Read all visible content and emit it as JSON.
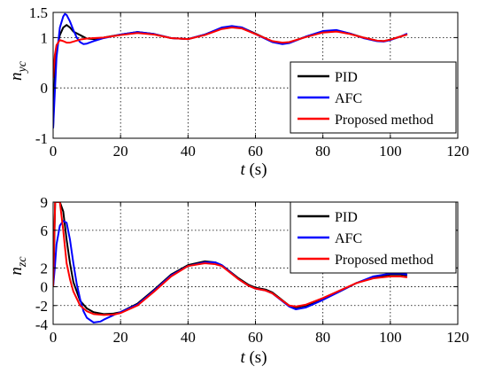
{
  "chart_data": [
    {
      "type": "line",
      "xlim": [
        0,
        120
      ],
      "ylim": [
        -1,
        1.5
      ],
      "xticks": [
        "0",
        "20",
        "40",
        "60",
        "80",
        "100",
        "120"
      ],
      "yticks": [
        "-1",
        "0",
        "1",
        "1.5"
      ],
      "ytick_values": [
        -1,
        0,
        1,
        1.5
      ],
      "xlabel_var": "t",
      "xlabel_unit": " (s)",
      "ylabel_main": "n",
      "ylabel_sub": "yc",
      "grid": true,
      "legend_position": "bottom-right",
      "series": [
        {
          "name": "PID",
          "color": "#000000",
          "x": [
            0,
            0.5,
            1,
            2,
            3,
            4,
            5,
            6,
            8,
            10,
            12,
            15,
            20,
            25,
            30,
            35,
            40,
            45,
            50,
            53,
            56,
            60,
            65,
            68,
            70,
            75,
            80,
            84,
            88,
            92,
            96,
            98,
            100,
            103,
            105
          ],
          "y": [
            -0.8,
            0.3,
            0.75,
            1.05,
            1.2,
            1.25,
            1.2,
            1.12,
            1.05,
            0.98,
            0.97,
            1.0,
            1.06,
            1.11,
            1.07,
            0.99,
            0.97,
            1.06,
            1.19,
            1.22,
            1.2,
            1.08,
            0.92,
            0.88,
            0.9,
            1.02,
            1.12,
            1.14,
            1.08,
            1.0,
            0.94,
            0.93,
            0.96,
            1.02,
            1.07
          ]
        },
        {
          "name": "AFC",
          "color": "#0000ff",
          "x": [
            0,
            0.5,
            1,
            2,
            3,
            3.5,
            4,
            5,
            6,
            7,
            8,
            9,
            10,
            12,
            15,
            20,
            25,
            30,
            35,
            40,
            45,
            50,
            53,
            56,
            60,
            65,
            68,
            70,
            75,
            80,
            84,
            88,
            92,
            96,
            98,
            100,
            103,
            105
          ],
          "y": [
            -0.8,
            -0.1,
            0.6,
            1.2,
            1.42,
            1.47,
            1.45,
            1.32,
            1.15,
            1.0,
            0.91,
            0.87,
            0.88,
            0.93,
            0.99,
            1.06,
            1.11,
            1.07,
            0.99,
            0.97,
            1.06,
            1.2,
            1.23,
            1.2,
            1.07,
            0.91,
            0.87,
            0.89,
            1.02,
            1.13,
            1.15,
            1.08,
            0.99,
            0.93,
            0.92,
            0.95,
            1.02,
            1.08
          ]
        },
        {
          "name": "Proposed method",
          "color": "#ff0000",
          "x": [
            0,
            0.5,
            1,
            2,
            3,
            4,
            5,
            6,
            8,
            10,
            12,
            15,
            20,
            25,
            30,
            35,
            40,
            45,
            50,
            53,
            56,
            60,
            65,
            68,
            70,
            75,
            80,
            84,
            88,
            92,
            96,
            98,
            100,
            103,
            105
          ],
          "y": [
            0.2,
            0.65,
            0.85,
            0.95,
            0.93,
            0.9,
            0.9,
            0.92,
            0.96,
            0.98,
            0.99,
            1.0,
            1.05,
            1.09,
            1.06,
            0.99,
            0.97,
            1.05,
            1.17,
            1.2,
            1.18,
            1.07,
            0.93,
            0.9,
            0.91,
            1.01,
            1.1,
            1.12,
            1.07,
            1.0,
            0.94,
            0.93,
            0.96,
            1.02,
            1.06
          ]
        }
      ]
    },
    {
      "type": "line",
      "xlim": [
        0,
        120
      ],
      "ylim": [
        -4,
        9
      ],
      "xticks": [
        "0",
        "20",
        "40",
        "60",
        "80",
        "100",
        "120"
      ],
      "yticks": [
        "-4",
        "-2",
        "0",
        "2",
        "6",
        "9"
      ],
      "ytick_values": [
        -4,
        -2,
        0,
        2,
        6,
        9
      ],
      "xlabel_var": "t",
      "xlabel_unit": " (s)",
      "ylabel_main": "n",
      "ylabel_sub": "zc",
      "grid": true,
      "legend_position": "top-right",
      "series": [
        {
          "name": "PID",
          "color": "#000000",
          "x": [
            0,
            0.3,
            0.6,
            1,
            1.5,
            2,
            3,
            4,
            5,
            6,
            8,
            10,
            12,
            15,
            18,
            20,
            25,
            30,
            35,
            40,
            45,
            48,
            50,
            55,
            58,
            60,
            63,
            65,
            70,
            72,
            75,
            80,
            85,
            90,
            95,
            100,
            103,
            105
          ],
          "y": [
            0,
            4,
            9,
            9,
            9,
            9,
            8,
            5,
            2.5,
            0.5,
            -1.5,
            -2.3,
            -2.7,
            -2.9,
            -2.85,
            -2.7,
            -1.8,
            -0.3,
            1.3,
            2.3,
            2.7,
            2.6,
            2.3,
            0.9,
            0.2,
            -0.1,
            -0.3,
            -0.6,
            -2.0,
            -2.2,
            -2.0,
            -1.3,
            -0.5,
            0.4,
            1.0,
            1.3,
            1.3,
            1.2
          ]
        },
        {
          "name": "AFC",
          "color": "#0000ff",
          "x": [
            0,
            0.5,
            1,
            2,
            3,
            4,
            5,
            6,
            7,
            8,
            9,
            10,
            12,
            14,
            15,
            18,
            20,
            25,
            30,
            35,
            40,
            45,
            48,
            50,
            55,
            58,
            60,
            63,
            65,
            70,
            72,
            75,
            80,
            85,
            90,
            95,
            100,
            103,
            105
          ],
          "y": [
            0,
            2,
            4.5,
            6.5,
            7,
            6.8,
            5,
            2.5,
            0.3,
            -1.3,
            -2.6,
            -3.3,
            -3.8,
            -3.7,
            -3.5,
            -3.0,
            -2.7,
            -1.9,
            -0.4,
            1.2,
            2.2,
            2.6,
            2.6,
            2.3,
            0.8,
            0.1,
            -0.2,
            -0.4,
            -0.7,
            -2.1,
            -2.4,
            -2.2,
            -1.4,
            -0.5,
            0.4,
            1.1,
            1.4,
            1.4,
            1.3
          ]
        },
        {
          "name": "Proposed method",
          "color": "#ff0000",
          "x": [
            0,
            0.3,
            0.6,
            1,
            1.5,
            2,
            3,
            4,
            5,
            6,
            8,
            10,
            12,
            15,
            18,
            20,
            25,
            30,
            35,
            40,
            45,
            48,
            50,
            55,
            58,
            60,
            63,
            65,
            70,
            72,
            75,
            80,
            85,
            90,
            95,
            100,
            103,
            105
          ],
          "y": [
            0,
            5,
            9,
            9,
            9,
            9,
            6,
            2.5,
            0.8,
            -0.5,
            -2.0,
            -2.6,
            -2.9,
            -3.0,
            -2.95,
            -2.8,
            -2.0,
            -0.5,
            1.1,
            2.2,
            2.5,
            2.4,
            2.2,
            0.8,
            0.1,
            -0.2,
            -0.4,
            -0.7,
            -2.0,
            -2.1,
            -1.9,
            -1.2,
            -0.4,
            0.4,
            0.9,
            1.1,
            1.1,
            1.0
          ]
        }
      ]
    }
  ]
}
